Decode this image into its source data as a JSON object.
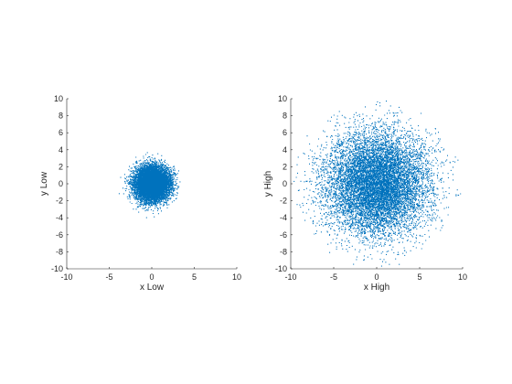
{
  "chart_data": [
    {
      "type": "scatter",
      "xlabel": "x Low",
      "ylabel": "y Low",
      "xlim": [
        -10,
        10
      ],
      "ylim": [
        -10,
        10
      ],
      "xticks": [
        "-10",
        "-5",
        "0",
        "5",
        "10"
      ],
      "yticks": [
        "10",
        "8",
        "6",
        "4",
        "2",
        "0",
        "-2",
        "-4",
        "-6",
        "-8",
        "-10"
      ],
      "grid": false,
      "color": "#0072BD",
      "distribution": {
        "center": [
          0,
          0
        ],
        "approx_std": 1.0,
        "approx_max_radius": 4.3,
        "approx_point_count": 10000
      }
    },
    {
      "type": "scatter",
      "xlabel": "x High",
      "ylabel": "y High",
      "xlim": [
        -10,
        10
      ],
      "ylim": [
        -10,
        10
      ],
      "xticks": [
        "-10",
        "-5",
        "0",
        "5",
        "10"
      ],
      "yticks": [
        "10",
        "8",
        "6",
        "4",
        "2",
        "0",
        "-2",
        "-4",
        "-6",
        "-8",
        "-10"
      ],
      "grid": false,
      "color": "#0072BD",
      "distribution": {
        "center": [
          0,
          0
        ],
        "approx_std": 3.0,
        "approx_max_radius": 9.9,
        "approx_point_count": 10000
      }
    }
  ]
}
